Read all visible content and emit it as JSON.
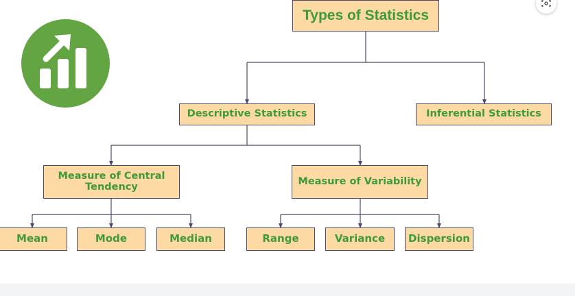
{
  "diagram": {
    "root": "Types of Statistics",
    "branches": {
      "descriptive": "Descriptive Statistics",
      "inferential": "Inferential Statistics"
    },
    "groups": {
      "central": "Measure of Central Tendency",
      "variability": "Measure of Variability"
    },
    "leaves": {
      "mean": "Mean",
      "mode": "Mode",
      "median": "Median",
      "range": "Range",
      "variance": "Variance",
      "dispersion": "Dispersion"
    }
  },
  "logo": {
    "icon": "bar-chart-growth-icon",
    "color": "#62a542"
  },
  "colors": {
    "box_fill": "#fdd9a3",
    "text": "#3e9a3c",
    "lines": "#4a4a6a"
  },
  "controls": {
    "lens_icon": "visual-search-icon"
  }
}
